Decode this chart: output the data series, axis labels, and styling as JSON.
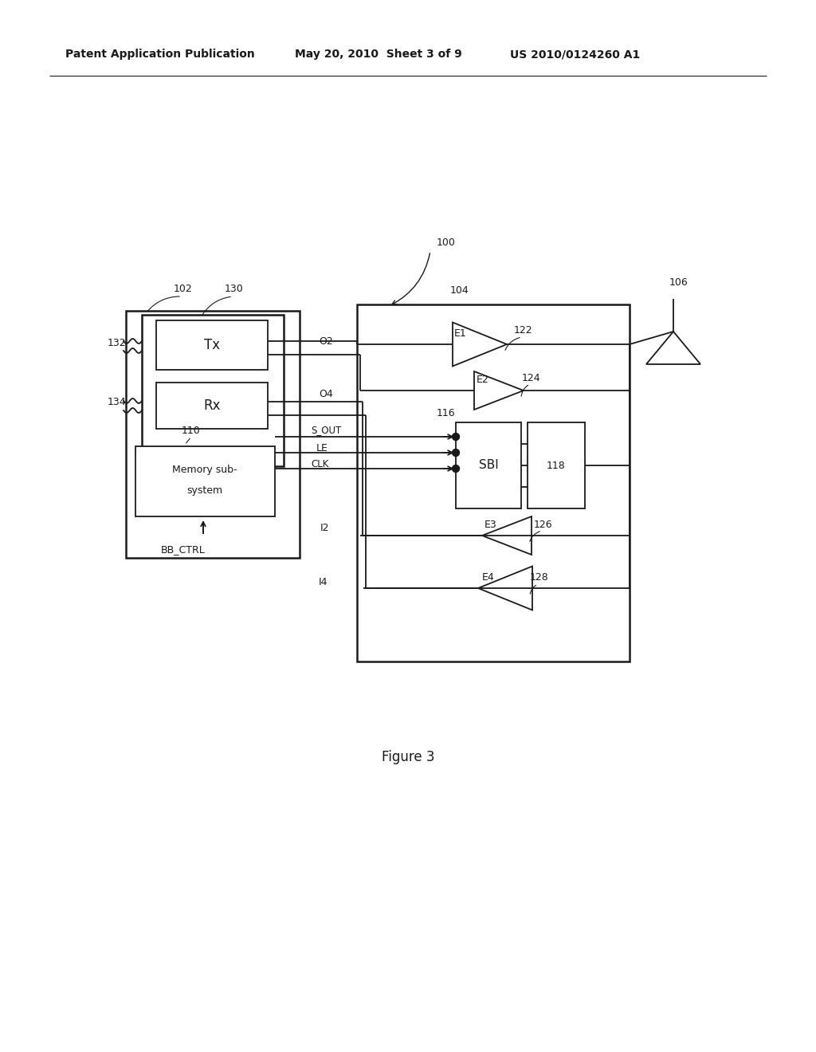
{
  "bg_color": "#ffffff",
  "header_left": "Patent Application Publication",
  "header_mid": "May 20, 2010  Sheet 3 of 9",
  "header_right_correct": "US 2010/0124260 A1",
  "figure_label": "Figure 3",
  "line_color": "#1a1a1a",
  "lw": 1.3,
  "font_size_main": 9,
  "font_size_header": 10,
  "font_size_figure": 12
}
